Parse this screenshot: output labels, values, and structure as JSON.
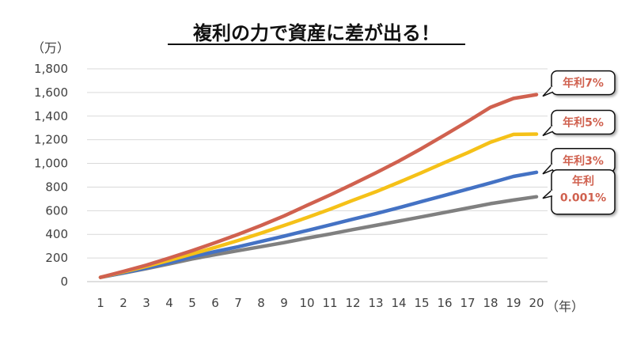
{
  "chart_data": {
    "type": "line",
    "title": "複利の力で資産に差が出る！",
    "y_unit": "（万）",
    "x_unit": "（年）",
    "x": [
      1,
      2,
      3,
      4,
      5,
      6,
      7,
      8,
      9,
      10,
      11,
      12,
      13,
      14,
      15,
      16,
      17,
      18,
      19,
      20
    ],
    "ylim": [
      0,
      1800
    ],
    "y_ticks": [
      "0",
      "200",
      "400",
      "600",
      "800",
      "1,000",
      "1,200",
      "1,400",
      "1,600",
      "1,800"
    ],
    "grid": "horizontal",
    "series": [
      {
        "name": "年利7%",
        "color": "#d0614f",
        "values": [
          36,
          87,
          139,
          200,
          262,
          329,
          400,
          475,
          556,
          645,
          733,
          825,
          920,
          1020,
          1127,
          1240,
          1355,
          1475,
          1550,
          1582
        ]
      },
      {
        "name": "年利5%",
        "color": "#f5c118",
        "values": [
          36,
          82,
          129,
          180,
          234,
          290,
          348,
          410,
          475,
          542,
          612,
          688,
          760,
          840,
          922,
          1008,
          1090,
          1180,
          1245,
          1248
        ]
      },
      {
        "name": "年利3%",
        "color": "#4472c4",
        "values": [
          36,
          75,
          115,
          160,
          210,
          255,
          295,
          340,
          385,
          432,
          480,
          528,
          575,
          625,
          678,
          730,
          782,
          835,
          890,
          925
        ]
      },
      {
        "name": "年利\n0.001%",
        "color": "#808080",
        "values": [
          36,
          72,
          110,
          150,
          192,
          228,
          262,
          296,
          330,
          368,
          403,
          440,
          476,
          512,
          548,
          585,
          622,
          660,
          690,
          718
        ]
      }
    ]
  }
}
